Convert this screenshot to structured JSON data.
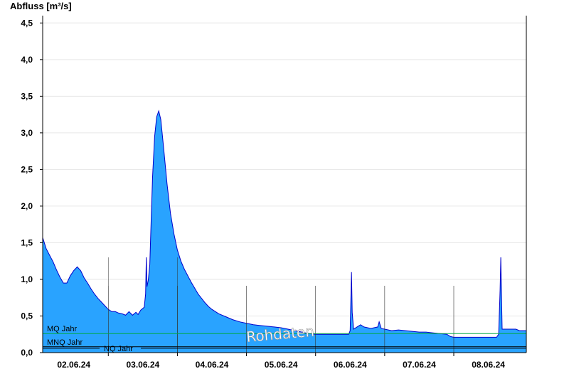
{
  "chart_data": {
    "type": "area",
    "ylabel": "Abfluss [m³/s]",
    "ylim": [
      0,
      4.6
    ],
    "yticks": [
      0,
      0.5,
      1.0,
      1.5,
      2.0,
      2.5,
      3.0,
      3.5,
      4.0,
      4.5
    ],
    "ytick_labels": [
      "0,0",
      "0,5",
      "1,0",
      "1,5",
      "2,0",
      "2,5",
      "3,0",
      "3,5",
      "4,0",
      "4,5"
    ],
    "xlim": [
      1.55,
      8.55
    ],
    "xtick_labels": [
      {
        "x": 2.0,
        "label": "02.06.24"
      },
      {
        "x": 3.0,
        "label": "03.06.24"
      },
      {
        "x": 4.0,
        "label": "04.06.24"
      },
      {
        "x": 5.0,
        "label": "05.06.24"
      },
      {
        "x": 6.0,
        "label": "06.06.24"
      },
      {
        "x": 7.0,
        "label": "07.06.24"
      },
      {
        "x": 8.0,
        "label": "08.06.24"
      }
    ],
    "day_boundaries": [
      2.5,
      3.5,
      4.5,
      5.5,
      6.5,
      7.5
    ],
    "grid": true,
    "series": [
      {
        "color": "#29a3ff",
        "line_color": "#0000cc",
        "points": [
          [
            1.55,
            1.57
          ],
          [
            1.6,
            1.42
          ],
          [
            1.65,
            1.33
          ],
          [
            1.7,
            1.24
          ],
          [
            1.75,
            1.13
          ],
          [
            1.8,
            1.03
          ],
          [
            1.85,
            0.95
          ],
          [
            1.9,
            0.95
          ],
          [
            1.95,
            1.05
          ],
          [
            2.0,
            1.12
          ],
          [
            2.05,
            1.17
          ],
          [
            2.1,
            1.12
          ],
          [
            2.15,
            1.02
          ],
          [
            2.2,
            0.95
          ],
          [
            2.25,
            0.87
          ],
          [
            2.3,
            0.8
          ],
          [
            2.35,
            0.74
          ],
          [
            2.4,
            0.69
          ],
          [
            2.45,
            0.64
          ],
          [
            2.5,
            0.59
          ],
          [
            2.55,
            0.56
          ],
          [
            2.6,
            0.56
          ],
          [
            2.65,
            0.54
          ],
          [
            2.7,
            0.53
          ],
          [
            2.75,
            0.51
          ],
          [
            2.8,
            0.56
          ],
          [
            2.85,
            0.51
          ],
          [
            2.9,
            0.55
          ],
          [
            2.93,
            0.52
          ],
          [
            2.97,
            0.58
          ],
          [
            3.02,
            0.62
          ],
          [
            3.04,
            0.8
          ],
          [
            3.05,
            1.3
          ],
          [
            3.06,
            0.9
          ],
          [
            3.08,
            1.0
          ],
          [
            3.1,
            1.2
          ],
          [
            3.12,
            1.8
          ],
          [
            3.14,
            2.4
          ],
          [
            3.17,
            2.95
          ],
          [
            3.2,
            3.22
          ],
          [
            3.23,
            3.3
          ],
          [
            3.26,
            3.18
          ],
          [
            3.3,
            2.8
          ],
          [
            3.35,
            2.3
          ],
          [
            3.4,
            1.9
          ],
          [
            3.45,
            1.62
          ],
          [
            3.5,
            1.4
          ],
          [
            3.55,
            1.25
          ],
          [
            3.6,
            1.14
          ],
          [
            3.65,
            1.05
          ],
          [
            3.7,
            0.96
          ],
          [
            3.75,
            0.88
          ],
          [
            3.8,
            0.8
          ],
          [
            3.85,
            0.74
          ],
          [
            3.9,
            0.68
          ],
          [
            3.95,
            0.63
          ],
          [
            4.0,
            0.59
          ],
          [
            4.1,
            0.53
          ],
          [
            4.2,
            0.49
          ],
          [
            4.3,
            0.45
          ],
          [
            4.4,
            0.42
          ],
          [
            4.5,
            0.4
          ],
          [
            4.6,
            0.38
          ],
          [
            4.7,
            0.37
          ],
          [
            4.8,
            0.36
          ],
          [
            4.9,
            0.35
          ],
          [
            5.0,
            0.34
          ],
          [
            5.1,
            0.32
          ],
          [
            5.2,
            0.3
          ],
          [
            5.3,
            0.28
          ],
          [
            5.4,
            0.26
          ],
          [
            5.5,
            0.25
          ],
          [
            5.6,
            0.25
          ],
          [
            5.7,
            0.25
          ],
          [
            5.8,
            0.25
          ],
          [
            5.9,
            0.25
          ],
          [
            5.98,
            0.25
          ],
          [
            6.0,
            0.3
          ],
          [
            6.02,
            1.1
          ],
          [
            6.03,
            0.55
          ],
          [
            6.05,
            0.32
          ],
          [
            6.1,
            0.35
          ],
          [
            6.15,
            0.38
          ],
          [
            6.2,
            0.35
          ],
          [
            6.3,
            0.33
          ],
          [
            6.4,
            0.35
          ],
          [
            6.42,
            0.42
          ],
          [
            6.45,
            0.33
          ],
          [
            6.5,
            0.32
          ],
          [
            6.6,
            0.3
          ],
          [
            6.7,
            0.31
          ],
          [
            6.8,
            0.3
          ],
          [
            6.9,
            0.29
          ],
          [
            7.0,
            0.28
          ],
          [
            7.1,
            0.28
          ],
          [
            7.2,
            0.27
          ],
          [
            7.3,
            0.26
          ],
          [
            7.4,
            0.25
          ],
          [
            7.45,
            0.22
          ],
          [
            7.5,
            0.21
          ],
          [
            7.6,
            0.21
          ],
          [
            7.7,
            0.21
          ],
          [
            7.8,
            0.21
          ],
          [
            7.9,
            0.21
          ],
          [
            8.0,
            0.21
          ],
          [
            8.12,
            0.21
          ],
          [
            8.15,
            0.25
          ],
          [
            8.17,
            0.85
          ],
          [
            8.18,
            1.3
          ],
          [
            8.2,
            0.32
          ],
          [
            8.3,
            0.32
          ],
          [
            8.4,
            0.32
          ],
          [
            8.45,
            0.3
          ],
          [
            8.55,
            0.3
          ]
        ]
      }
    ],
    "reference_lines": [
      {
        "name": "MQ Jahr",
        "value": 0.26,
        "color": "#00aa44"
      },
      {
        "name": "MNQ Jahr",
        "value": 0.08,
        "color": "#000000"
      },
      {
        "name": "NQ Jahr",
        "value": 0.06,
        "color": "#000000"
      }
    ],
    "annotations": [
      {
        "text": "Rohdaten"
      }
    ]
  }
}
